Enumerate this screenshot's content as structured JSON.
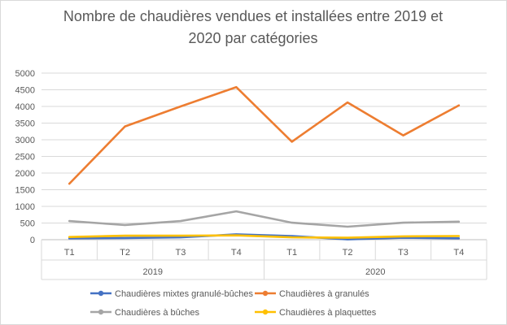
{
  "chart_data": {
    "type": "line",
    "title": "Nombre de chaudières vendues et installées entre 2019 et 2020 par catégories",
    "title_lines": [
      "Nombre de chaudières vendues et installées entre 2019 et",
      "2020 par catégories"
    ],
    "categories": [
      "T1",
      "T2",
      "T3",
      "T4",
      "T1",
      "T2",
      "T3",
      "T4"
    ],
    "groups": [
      {
        "label": "2019",
        "start": 0,
        "end": 3
      },
      {
        "label": "2020",
        "start": 4,
        "end": 7
      }
    ],
    "ylim": [
      0,
      5000
    ],
    "yticks": [
      0,
      500,
      1000,
      1500,
      2000,
      2500,
      3000,
      3500,
      4000,
      4500,
      5000
    ],
    "grid": true,
    "legend_position": "bottom",
    "series": [
      {
        "name": "Chaudières mixtes granulé-bûches",
        "color": "#4472C4",
        "values": [
          40,
          50,
          70,
          160,
          110,
          10,
          60,
          40
        ]
      },
      {
        "name": "Chaudières à granulés",
        "color": "#ED7D31",
        "values": [
          1680,
          3400,
          4000,
          4580,
          2940,
          4120,
          3130,
          4030
        ]
      },
      {
        "name": "Chaudières à bûches",
        "color": "#A5A5A5",
        "values": [
          560,
          440,
          560,
          850,
          510,
          390,
          510,
          540
        ]
      },
      {
        "name": "Chaudières à plaquettes",
        "color": "#FFC000",
        "values": [
          80,
          120,
          120,
          130,
          70,
          60,
          100,
          110
        ]
      }
    ]
  }
}
